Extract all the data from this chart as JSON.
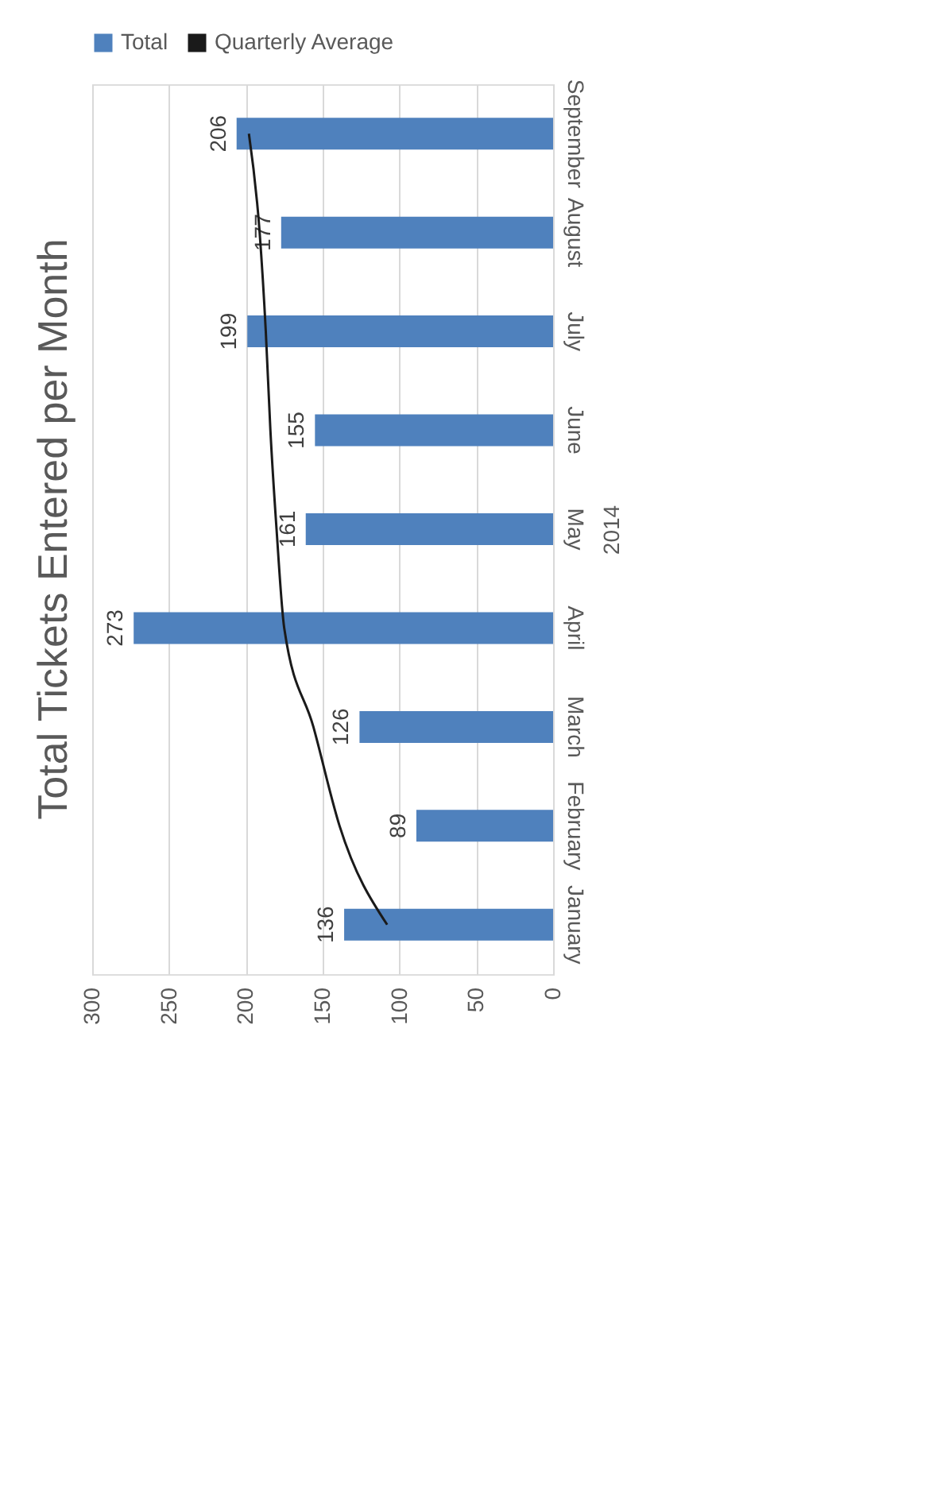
{
  "chart_data": {
    "type": "bar",
    "orientation": "horizontal",
    "title": "Total Tickets Entered per Month",
    "ylabel": "2014",
    "categories": [
      "September",
      "August",
      "July",
      "June",
      "May",
      "April",
      "March",
      "February",
      "January"
    ],
    "series": [
      {
        "name": "Total",
        "color": "#4f81bd",
        "values": [
          206,
          177,
          199,
          155,
          161,
          273,
          126,
          89,
          136
        ],
        "value_labels": [
          "206",
          "177",
          "199",
          "155",
          "161",
          "273",
          "126",
          "89",
          "136"
        ]
      },
      {
        "name": "Quarterly Average",
        "type": "line",
        "color": "#1a1a1a",
        "values": [
          198,
          191,
          187,
          184,
          180,
          175,
          156,
          139,
          108
        ]
      }
    ],
    "xlim": [
      300,
      0
    ],
    "xticks": [
      300,
      250,
      200,
      150,
      100,
      50,
      0
    ],
    "grid": "x",
    "legend": "top"
  }
}
